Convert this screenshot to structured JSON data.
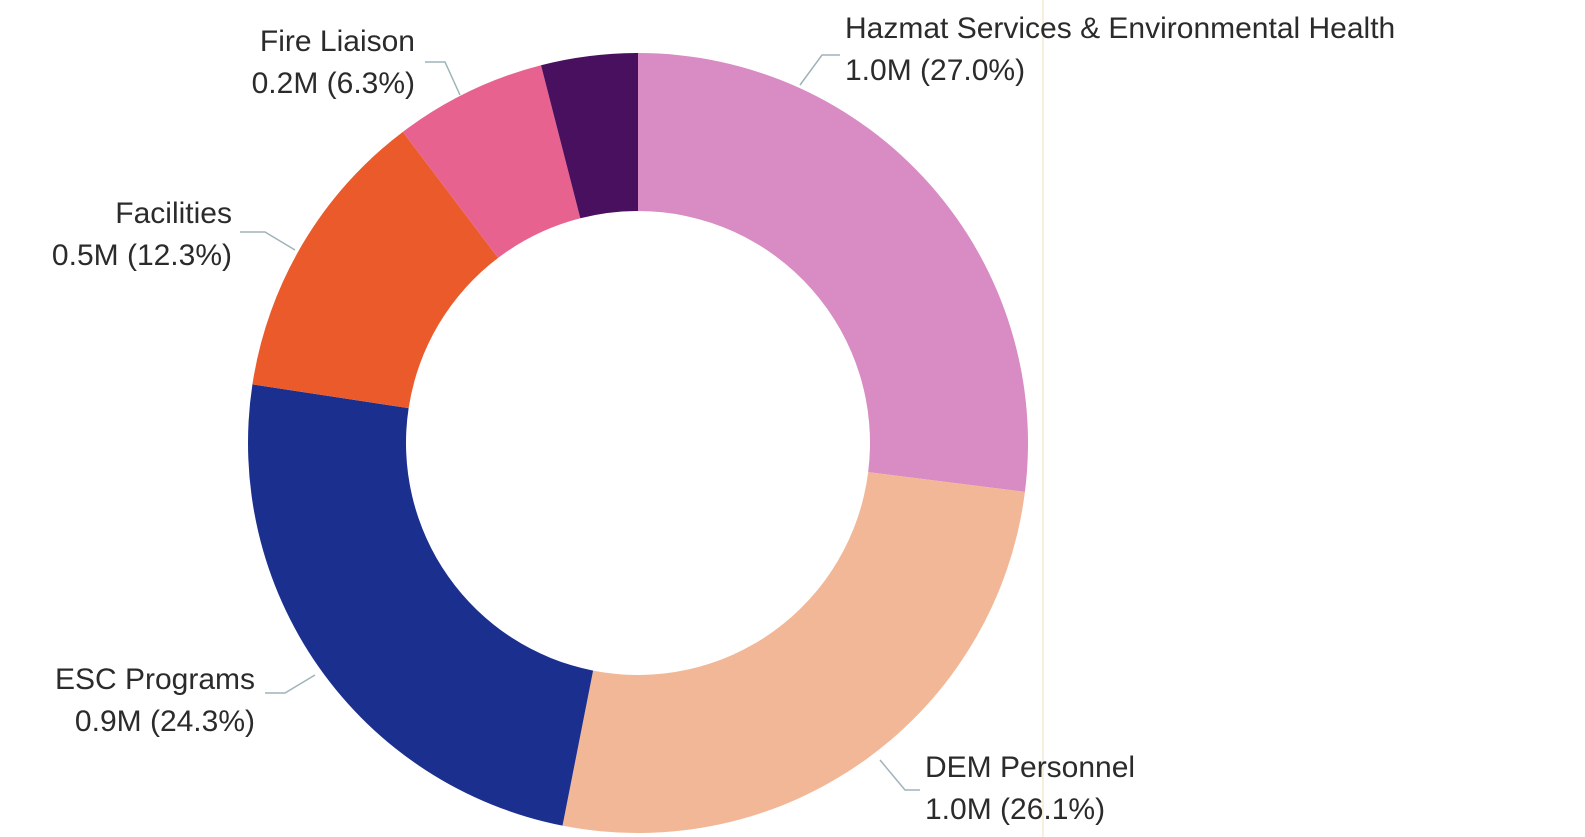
{
  "chart_data": {
    "type": "donut",
    "categories": [
      "Hazmat Services & Environmental Health",
      "DEM Personnel",
      "ESC Programs",
      "Facilities",
      "Fire Liaison",
      null
    ],
    "values": [
      27.0,
      26.1,
      24.3,
      12.3,
      6.3,
      4.0
    ],
    "value_labels": [
      "1.0M (27.0%)",
      "1.0M (26.1%)",
      "0.9M (24.3%)",
      "0.5M (12.3%)",
      "0.2M (6.3%)",
      null
    ],
    "colors": [
      "#d98bc4",
      "#f2b797",
      "#1b2f8f",
      "#eb5a2a",
      "#e8628f",
      "#4a1060"
    ]
  }
}
